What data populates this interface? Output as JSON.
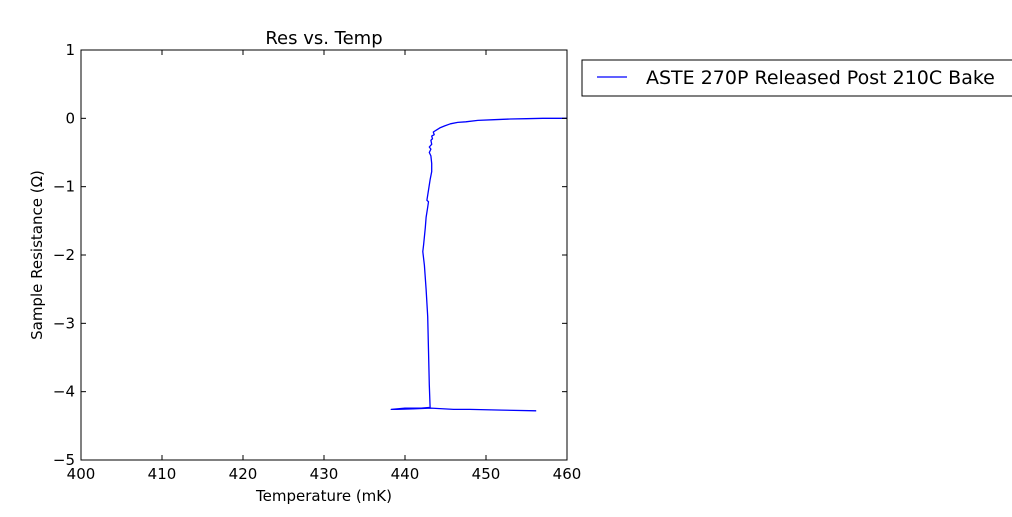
{
  "chart_data": {
    "type": "line",
    "title": "Res vs. Temp",
    "xlabel": "Temperature (mK)",
    "ylabel": "Sample Resistance (Ω)",
    "xlim": [
      400,
      460
    ],
    "ylim": [
      -5,
      1
    ],
    "xticks": [
      400,
      410,
      420,
      430,
      440,
      450,
      460
    ],
    "xtick_labels": [
      "400",
      "410",
      "420",
      "430",
      "440",
      "450",
      "460"
    ],
    "yticks": [
      -5,
      -4,
      -3,
      -2,
      -1,
      0,
      1
    ],
    "ytick_labels": [
      "−5",
      "−4",
      "−3",
      "−2",
      "−1",
      "0",
      "1"
    ],
    "grid": false,
    "legend_position": "outside-right",
    "colors": {
      "series": "#0000ff",
      "axes": "#000000",
      "background": "#ffffff"
    },
    "series": [
      {
        "name": "ASTE 270P Released Post 210C Bake",
        "x": [
          456.2,
          452.0,
          448.0,
          446.0,
          443.2,
          441.0,
          439.0,
          438.3,
          440.0,
          442.0,
          443.1,
          443.0,
          442.9,
          442.8,
          442.6,
          442.4,
          442.2,
          442.3,
          442.5,
          442.6,
          442.8,
          442.9,
          442.7,
          442.9,
          443.1,
          443.3,
          443.3,
          443.2,
          443.0,
          443.2,
          443.0,
          443.3,
          443.2,
          443.4,
          443.3,
          443.6,
          443.5,
          443.9,
          444.3,
          444.9,
          445.6,
          446.5,
          447.5,
          449.0,
          451.0,
          453.0,
          455.0,
          457.0,
          460.0
        ],
        "y": [
          -4.28,
          -4.27,
          -4.26,
          -4.26,
          -4.24,
          -4.25,
          -4.26,
          -4.26,
          -4.24,
          -4.24,
          -4.23,
          -3.9,
          -3.4,
          -2.9,
          -2.5,
          -2.15,
          -1.95,
          -1.85,
          -1.6,
          -1.45,
          -1.3,
          -1.22,
          -1.2,
          -1.05,
          -0.9,
          -0.78,
          -0.66,
          -0.55,
          -0.5,
          -0.45,
          -0.42,
          -0.38,
          -0.32,
          -0.3,
          -0.26,
          -0.24,
          -0.2,
          -0.17,
          -0.14,
          -0.11,
          -0.08,
          -0.06,
          -0.05,
          -0.03,
          -0.02,
          -0.01,
          -0.005,
          0.0,
          0.0
        ]
      }
    ]
  }
}
